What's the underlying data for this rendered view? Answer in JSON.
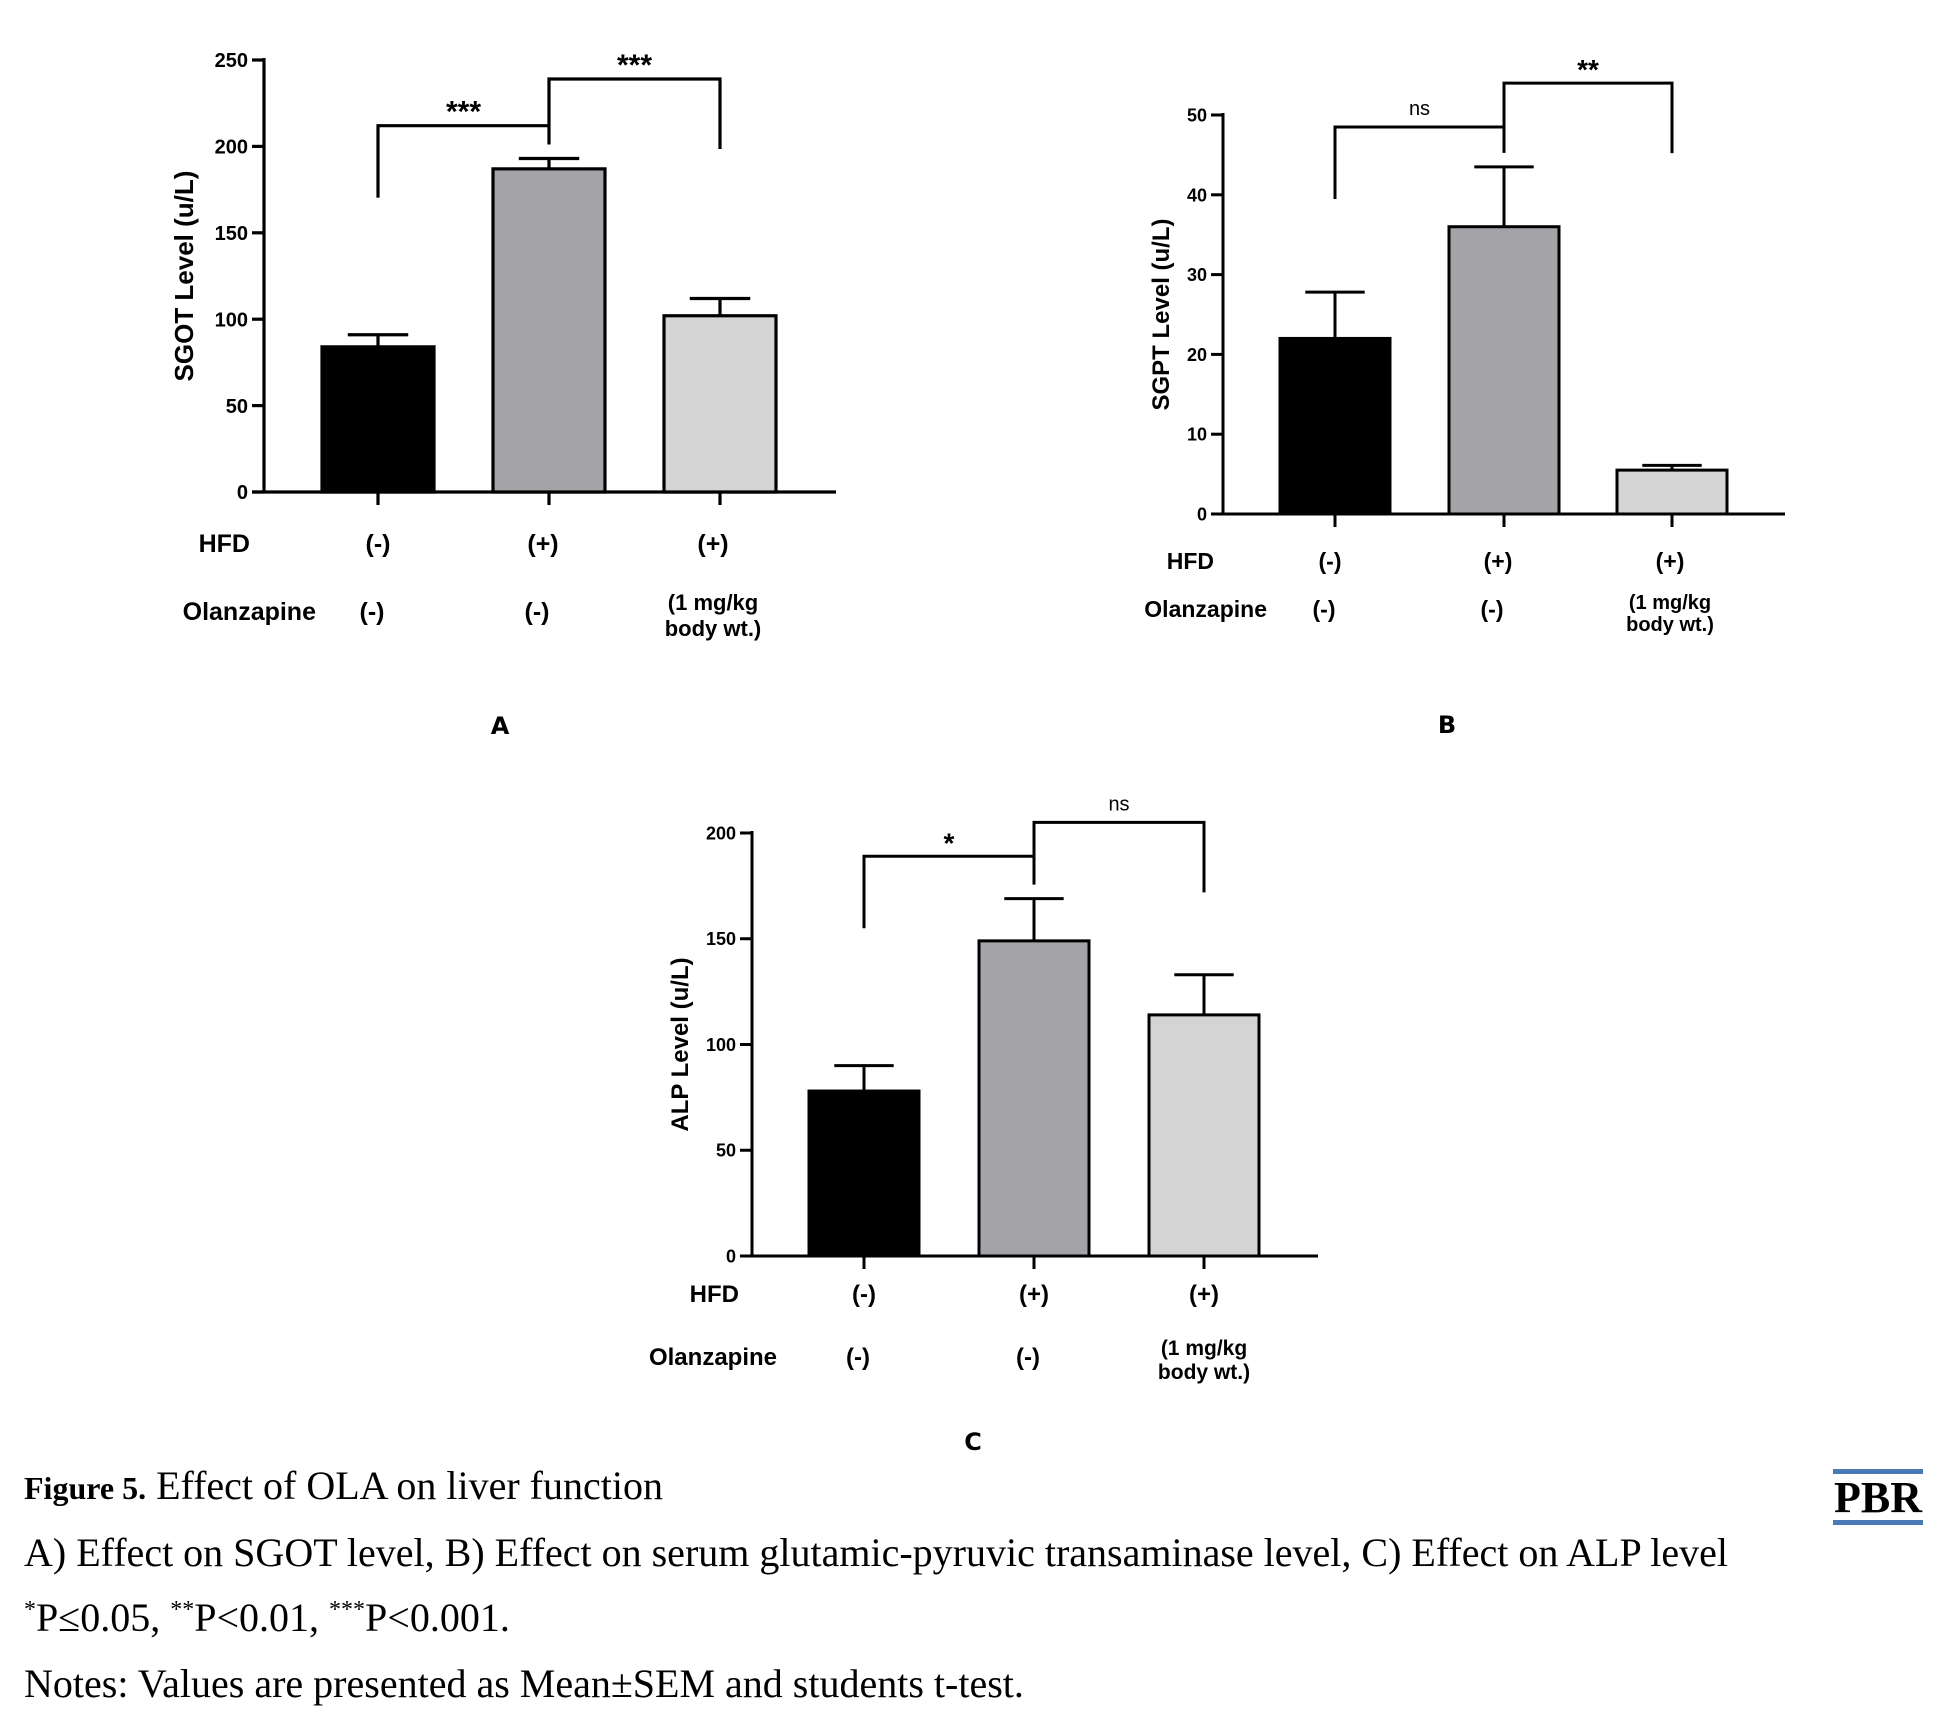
{
  "chart_data": [
    {
      "type": "bar",
      "panel_label": "A",
      "ylabel": "SGOT Level (u/L)",
      "ylim": [
        0,
        250
      ],
      "yticks": [
        "0",
        "50",
        "100",
        "150",
        "200",
        "250"
      ],
      "values": [
        84,
        187,
        102
      ],
      "errors": [
        7,
        6,
        10
      ],
      "colors": [
        "#000000",
        "#a3a3a8",
        "#d4d4d4"
      ],
      "condition_rows": [
        {
          "label": "HFD",
          "values": [
            "(-)",
            "(+)",
            "(+)"
          ]
        },
        {
          "label": "Olanzapine",
          "values": [
            "(-)",
            "(-)",
            "(1 mg/kg\nbody wt.)"
          ]
        }
      ],
      "significance": [
        {
          "from": 0,
          "to": 1,
          "label": "***",
          "level": 212
        },
        {
          "from": 1,
          "to": 2,
          "label": "***",
          "level": 239
        }
      ]
    },
    {
      "type": "bar",
      "panel_label": "B",
      "ylabel": "SGPT Level (u/L)",
      "ylim": [
        0,
        50
      ],
      "yticks": [
        "0",
        "10",
        "20",
        "30",
        "40",
        "50"
      ],
      "values": [
        22,
        36,
        5.5
      ],
      "errors": [
        5.8,
        7.5,
        0.6
      ],
      "colors": [
        "#000000",
        "#a3a3a8",
        "#d4d4d4"
      ],
      "condition_rows": [
        {
          "label": "HFD",
          "values": [
            "(-)",
            "(+)",
            "(+)"
          ]
        },
        {
          "label": "Olanzapine",
          "values": [
            "(-)",
            "(-)",
            "(1 mg/kg\nbody wt.)"
          ]
        }
      ],
      "significance": [
        {
          "from": 0,
          "to": 1,
          "label": "ns",
          "level": 48.5
        },
        {
          "from": 1,
          "to": 2,
          "label": "**",
          "level": 54
        }
      ]
    },
    {
      "type": "bar",
      "panel_label": "C",
      "ylabel": "ALP Level (u/L)",
      "ylim": [
        0,
        200
      ],
      "yticks": [
        "0",
        "50",
        "100",
        "150",
        "200"
      ],
      "values": [
        78,
        149,
        114
      ],
      "errors": [
        12,
        20,
        19
      ],
      "colors": [
        "#000000",
        "#a3a3a8",
        "#d4d4d4"
      ],
      "condition_rows": [
        {
          "label": "HFD",
          "values": [
            "(-)",
            "(+)",
            "(+)"
          ]
        },
        {
          "label": "Olanzapine",
          "values": [
            "(-)",
            "(-)",
            "(1 mg/kg\nbody wt.)"
          ]
        }
      ],
      "significance": [
        {
          "from": 0,
          "to": 1,
          "label": "*",
          "level": 189
        },
        {
          "from": 1,
          "to": 2,
          "label": "ns",
          "level": 205
        }
      ]
    }
  ],
  "caption": {
    "figure_number": "Figure 5.",
    "title": " Effect of OLA on liver function",
    "line1": "A) Effect on SGOT level, B) Effect on serum glutamic-pyruvic transaminase level, C) Effect on ALP level",
    "line2_parts": [
      {
        "sup": "*",
        "text": "P≤0.05, "
      },
      {
        "sup": "**",
        "text": "P<0.01, "
      },
      {
        "sup": "***",
        "text": "P<0.001."
      }
    ],
    "line3": "Notes: Values are presented as Mean±SEM and students t-test."
  },
  "logo_text": "PBR"
}
